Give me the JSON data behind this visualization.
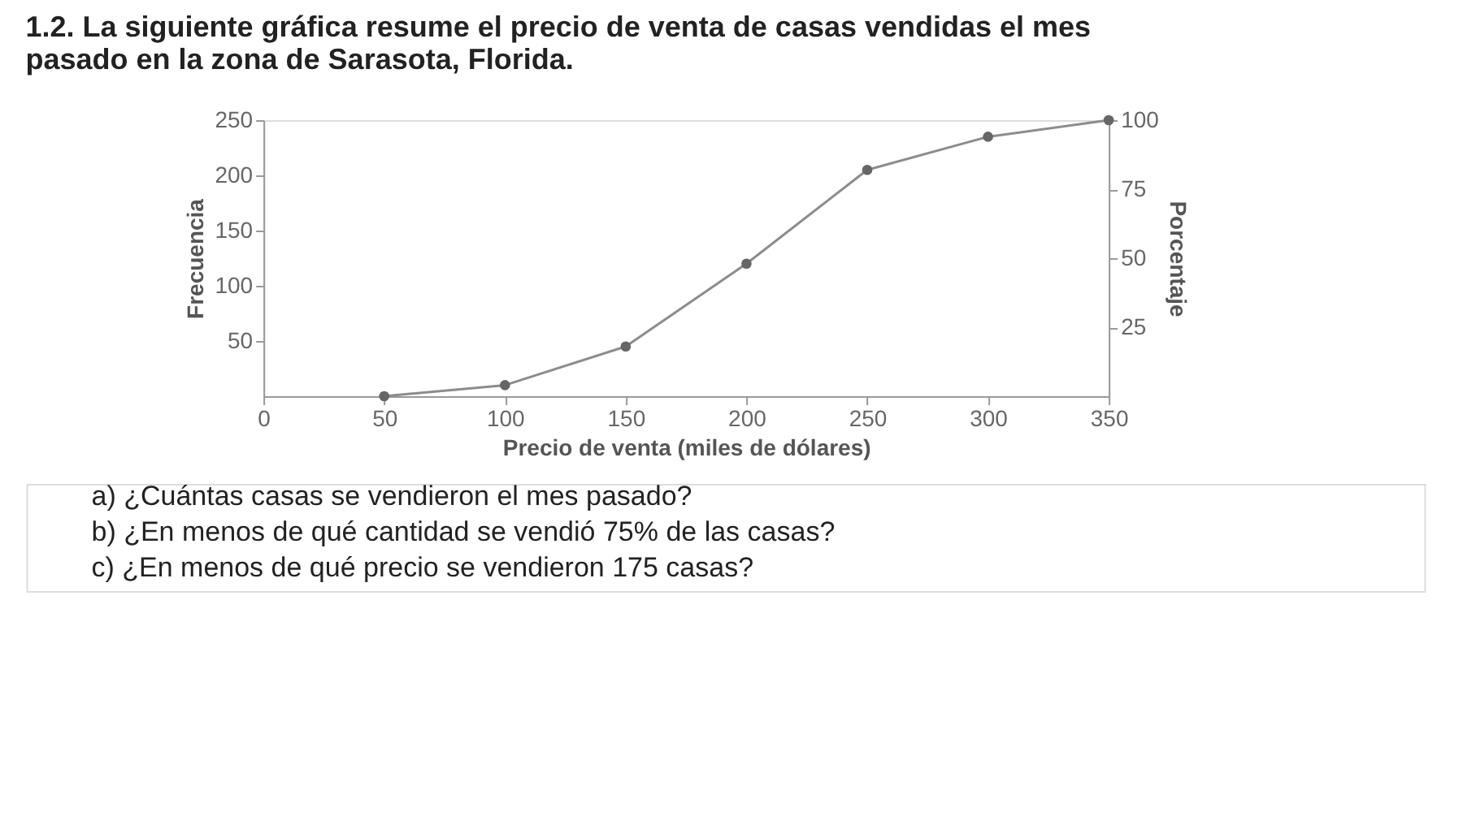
{
  "chart_data": {
    "type": "line",
    "title": "1.2. La siguiente gráfica resume el precio de venta de casas vendidas el mes pasado en la zona de Sarasota, Florida.",
    "xlabel": "Precio de venta (miles de dólares)",
    "ylabel": "Frecuencia",
    "y2label": "Porcentaje",
    "x": [
      50,
      100,
      150,
      200,
      250,
      300,
      350
    ],
    "series": [
      {
        "color": "#8c8c8c",
        "values": [
          0,
          10,
          45,
          120,
          205,
          235,
          250
        ]
      }
    ],
    "xlim": [
      0,
      350
    ],
    "xticks": [
      0,
      50,
      100,
      150,
      200,
      250,
      300,
      350
    ],
    "ylim": [
      0,
      250
    ],
    "yticks": [
      50,
      100,
      150,
      200,
      250
    ],
    "y2lim": [
      0,
      100
    ],
    "y2ticks": [
      25,
      50,
      75,
      100
    ],
    "marker": "circle",
    "grid": false,
    "annotations": [
      "a) ¿Cuántas casas se vendieron el mes pasado?",
      "b) ¿En menos de qué cantidad se vendió 75% de las casas?",
      "c) ¿En menos de qué precio se vendieron 175 casas?"
    ]
  }
}
